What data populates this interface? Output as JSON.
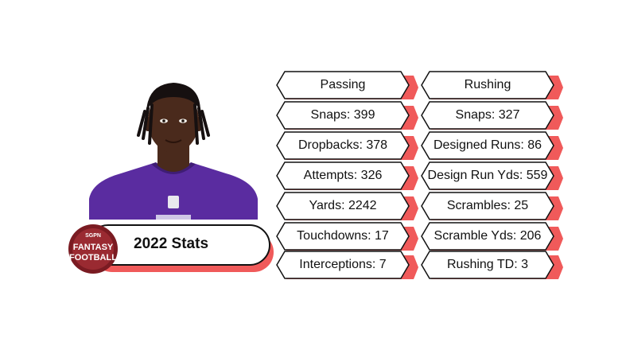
{
  "card": {
    "title": "2022 Stats",
    "logo": {
      "top": "SGPN",
      "line1": "FANTASY",
      "line2": "FOOTBALL",
      "color_primary": "#7a1b22",
      "color_secondary": "#b5373e"
    },
    "photo": {
      "jersey_color": "#5a2ca0",
      "skin_color": "#4a2a1c",
      "hair_color": "#161010"
    }
  },
  "stats": {
    "passing": {
      "header": "Passing",
      "items": [
        "Snaps: 399",
        "Dropbacks: 378",
        "Attempts: 326",
        "Yards: 2242",
        "Touchdowns: 17",
        "Interceptions: 7"
      ]
    },
    "rushing": {
      "header": "Rushing",
      "items": [
        "Snaps: 327",
        "Designed Runs: 86",
        "Design Run Yds: 559",
        "Scrambles: 25",
        "Scramble Yds: 206",
        "Rushing TD: 3"
      ]
    }
  },
  "colors": {
    "accent": "#f05a5a",
    "outline": "#111111"
  }
}
